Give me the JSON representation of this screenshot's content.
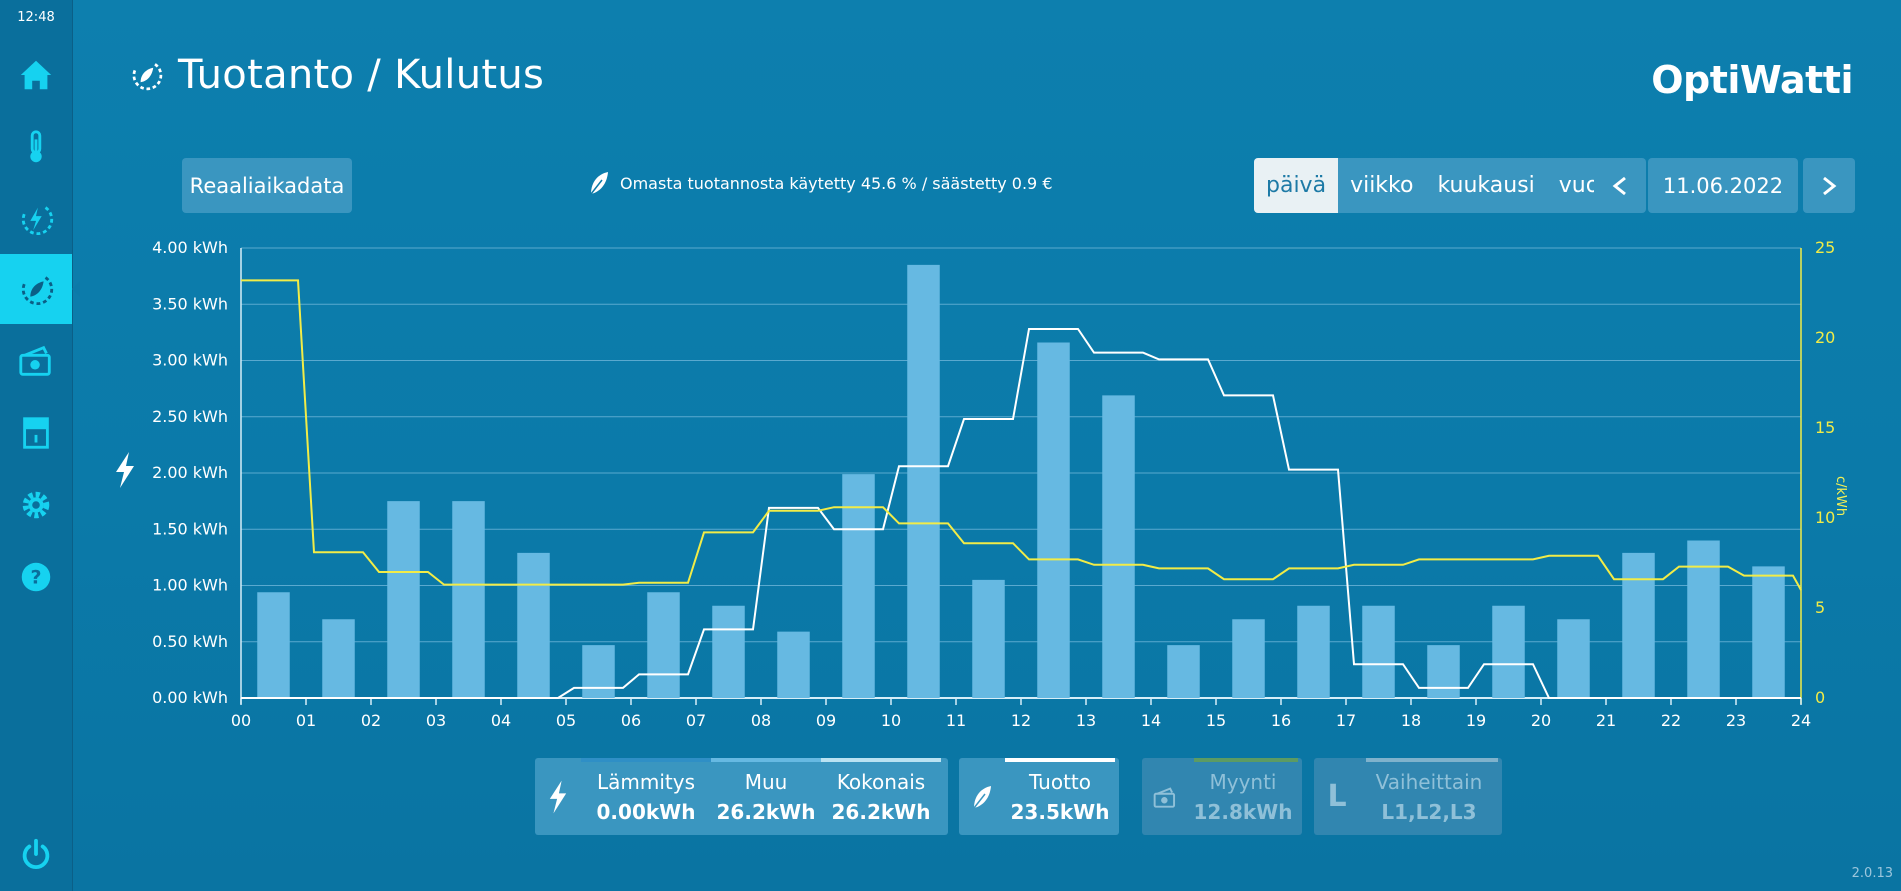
{
  "clock": "12:48",
  "page_title": "Tuotanto / Kulutus",
  "brand": "OptiWatti",
  "realtime_label": "Reaaliaikadata",
  "savings_text": "Omasta tuotannosta käytetty 45.6 % / säästetty 0.9 €",
  "periods": [
    "päivä",
    "viikko",
    "kuukausi",
    "vuosi"
  ],
  "active_period": "päivä",
  "date": "11.06.2022",
  "sidebar_icons": [
    "home-icon",
    "thermometer-icon",
    "energy-icon",
    "production-icon",
    "money-icon",
    "meter-icon",
    "gear-icon",
    "help-icon"
  ],
  "stats": {
    "heating_label": "Lämmitys",
    "heating_value": "0.00kWh",
    "other_label": "Muu",
    "other_value": "26.2kWh",
    "total_label": "Kokonais",
    "total_value": "26.2kWh",
    "production_label": "Tuotto",
    "production_value": "23.5kWh",
    "sales_label": "Myynti",
    "sales_value": "12.8kWh",
    "phases_label": "Vaiheittain",
    "phases_value": "L1,L2,L3",
    "phases_letter": "L"
  },
  "version": "2.0.13",
  "colors": {
    "bar": "#66b9e2",
    "consumption_line": "#ffffff",
    "price_line": "#f2ec47",
    "accent": "#16d2f0"
  },
  "chart_data": {
    "type": "bar",
    "x_categories": [
      "00",
      "01",
      "02",
      "03",
      "04",
      "05",
      "06",
      "07",
      "08",
      "09",
      "10",
      "11",
      "12",
      "13",
      "14",
      "15",
      "16",
      "17",
      "18",
      "19",
      "20",
      "21",
      "22",
      "23",
      "24"
    ],
    "ylabel_left_ticks": [
      "0.00 kWh",
      "0.50 kWh",
      "1.00 kWh",
      "1.50 kWh",
      "2.00 kWh",
      "2.50 kWh",
      "3.00 kWh",
      "3.50 kWh",
      "4.00 kWh"
    ],
    "ylabel_right": "c/kWh",
    "ylabel_right_ticks": [
      "0",
      "5",
      "10",
      "15",
      "20",
      "25"
    ],
    "ylim_left": [
      0,
      4
    ],
    "ylim_right": [
      0,
      25
    ],
    "bars_kwh": [
      0.94,
      0.7,
      1.75,
      1.75,
      1.29,
      0.47,
      0.94,
      0.82,
      0.59,
      1.99,
      3.85,
      1.05,
      3.16,
      2.69,
      0.47,
      0.7,
      0.82,
      0.82,
      0.47,
      0.82,
      0.7,
      1.29,
      1.4,
      1.17
    ],
    "consumption_line_kwh": [
      0,
      0,
      0,
      0,
      0,
      0.09,
      0.21,
      0.61,
      1.69,
      1.5,
      2.06,
      2.48,
      3.28,
      3.07,
      3.01,
      2.69,
      2.03,
      0.3,
      0.09,
      0.3,
      0,
      0,
      0,
      0
    ],
    "price_line_c_kwh": [
      23.2,
      8.1,
      7.0,
      6.3,
      6.3,
      6.3,
      6.4,
      9.2,
      10.4,
      10.6,
      9.7,
      8.6,
      7.7,
      7.4,
      7.2,
      6.6,
      7.2,
      7.4,
      7.7,
      7.7,
      7.9,
      6.6,
      7.3,
      6.8,
      6.0
    ],
    "grid": true
  }
}
